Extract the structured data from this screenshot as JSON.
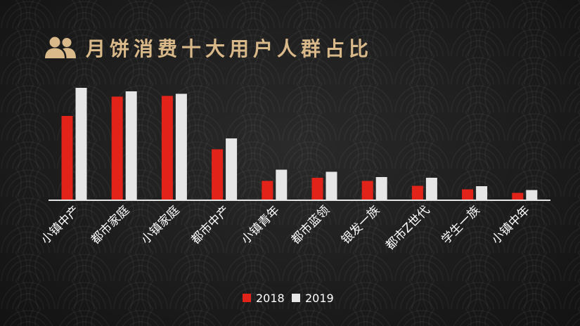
{
  "title": {
    "text": "月饼消费十大用户人群占比",
    "color": "#d9b98a",
    "icon": "users-icon"
  },
  "colors": {
    "series_2018": "#e2231a",
    "series_2019": "#e6e6e6",
    "axis": "#e6e6e6"
  },
  "chart_data": {
    "type": "bar",
    "title": "月饼消费十大用户人群占比",
    "categories": [
      "小镇中产",
      "都市家庭",
      "小镇家庭",
      "都市中产",
      "小镇青年",
      "都市蓝领",
      "银发一族",
      "都市Z世代",
      "学生一族",
      "小镇中年"
    ],
    "series": [
      {
        "name": "2018",
        "values": [
          24.0,
          29.5,
          29.7,
          14.5,
          5.5,
          6.4,
          5.5,
          4.1,
          3.1,
          2.1
        ]
      },
      {
        "name": "2019",
        "values": [
          32.0,
          31.0,
          30.3,
          17.6,
          8.7,
          8.1,
          6.6,
          6.4,
          4.0,
          2.9
        ]
      }
    ],
    "ylim": [
      0,
      35
    ],
    "grid": false,
    "y_axis_shown": false,
    "legend_position": "bottom-center",
    "xlabel": "",
    "ylabel": ""
  }
}
